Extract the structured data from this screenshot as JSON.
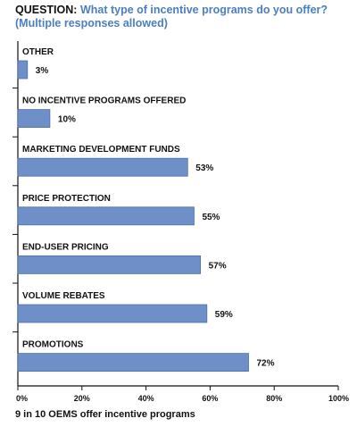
{
  "header": {
    "prefix": "QUESTION:",
    "question": "What type of incentive programs do you offer?",
    "note": "(Multiple responses allowed)"
  },
  "footnote": "9 in 10 OEMS offer incentive programs",
  "colors": {
    "bar": "#6f8fc8",
    "bar_stroke": "#4f6fa8",
    "text": "#111111",
    "title_accent": "#4a7fc1"
  },
  "chart_data": {
    "type": "bar",
    "orientation": "horizontal",
    "categories": [
      "OTHER",
      "NO INCENTIVE PROGRAMS OFFERED",
      "MARKETING DEVELOPMENT FUNDS",
      "PRICE PROTECTION",
      "END-USER PRICING",
      "VOLUME REBATES",
      "PROMOTIONS"
    ],
    "values": [
      3,
      10,
      53,
      55,
      57,
      59,
      72
    ],
    "value_labels": [
      "3%",
      "10%",
      "53%",
      "55%",
      "57%",
      "59%",
      "72%"
    ],
    "xlim": [
      0,
      100
    ],
    "xticks": [
      0,
      20,
      40,
      60,
      80,
      100
    ],
    "xtick_labels": [
      "0%",
      "20%",
      "40%",
      "60%",
      "80%",
      "100%"
    ],
    "grid": false
  }
}
